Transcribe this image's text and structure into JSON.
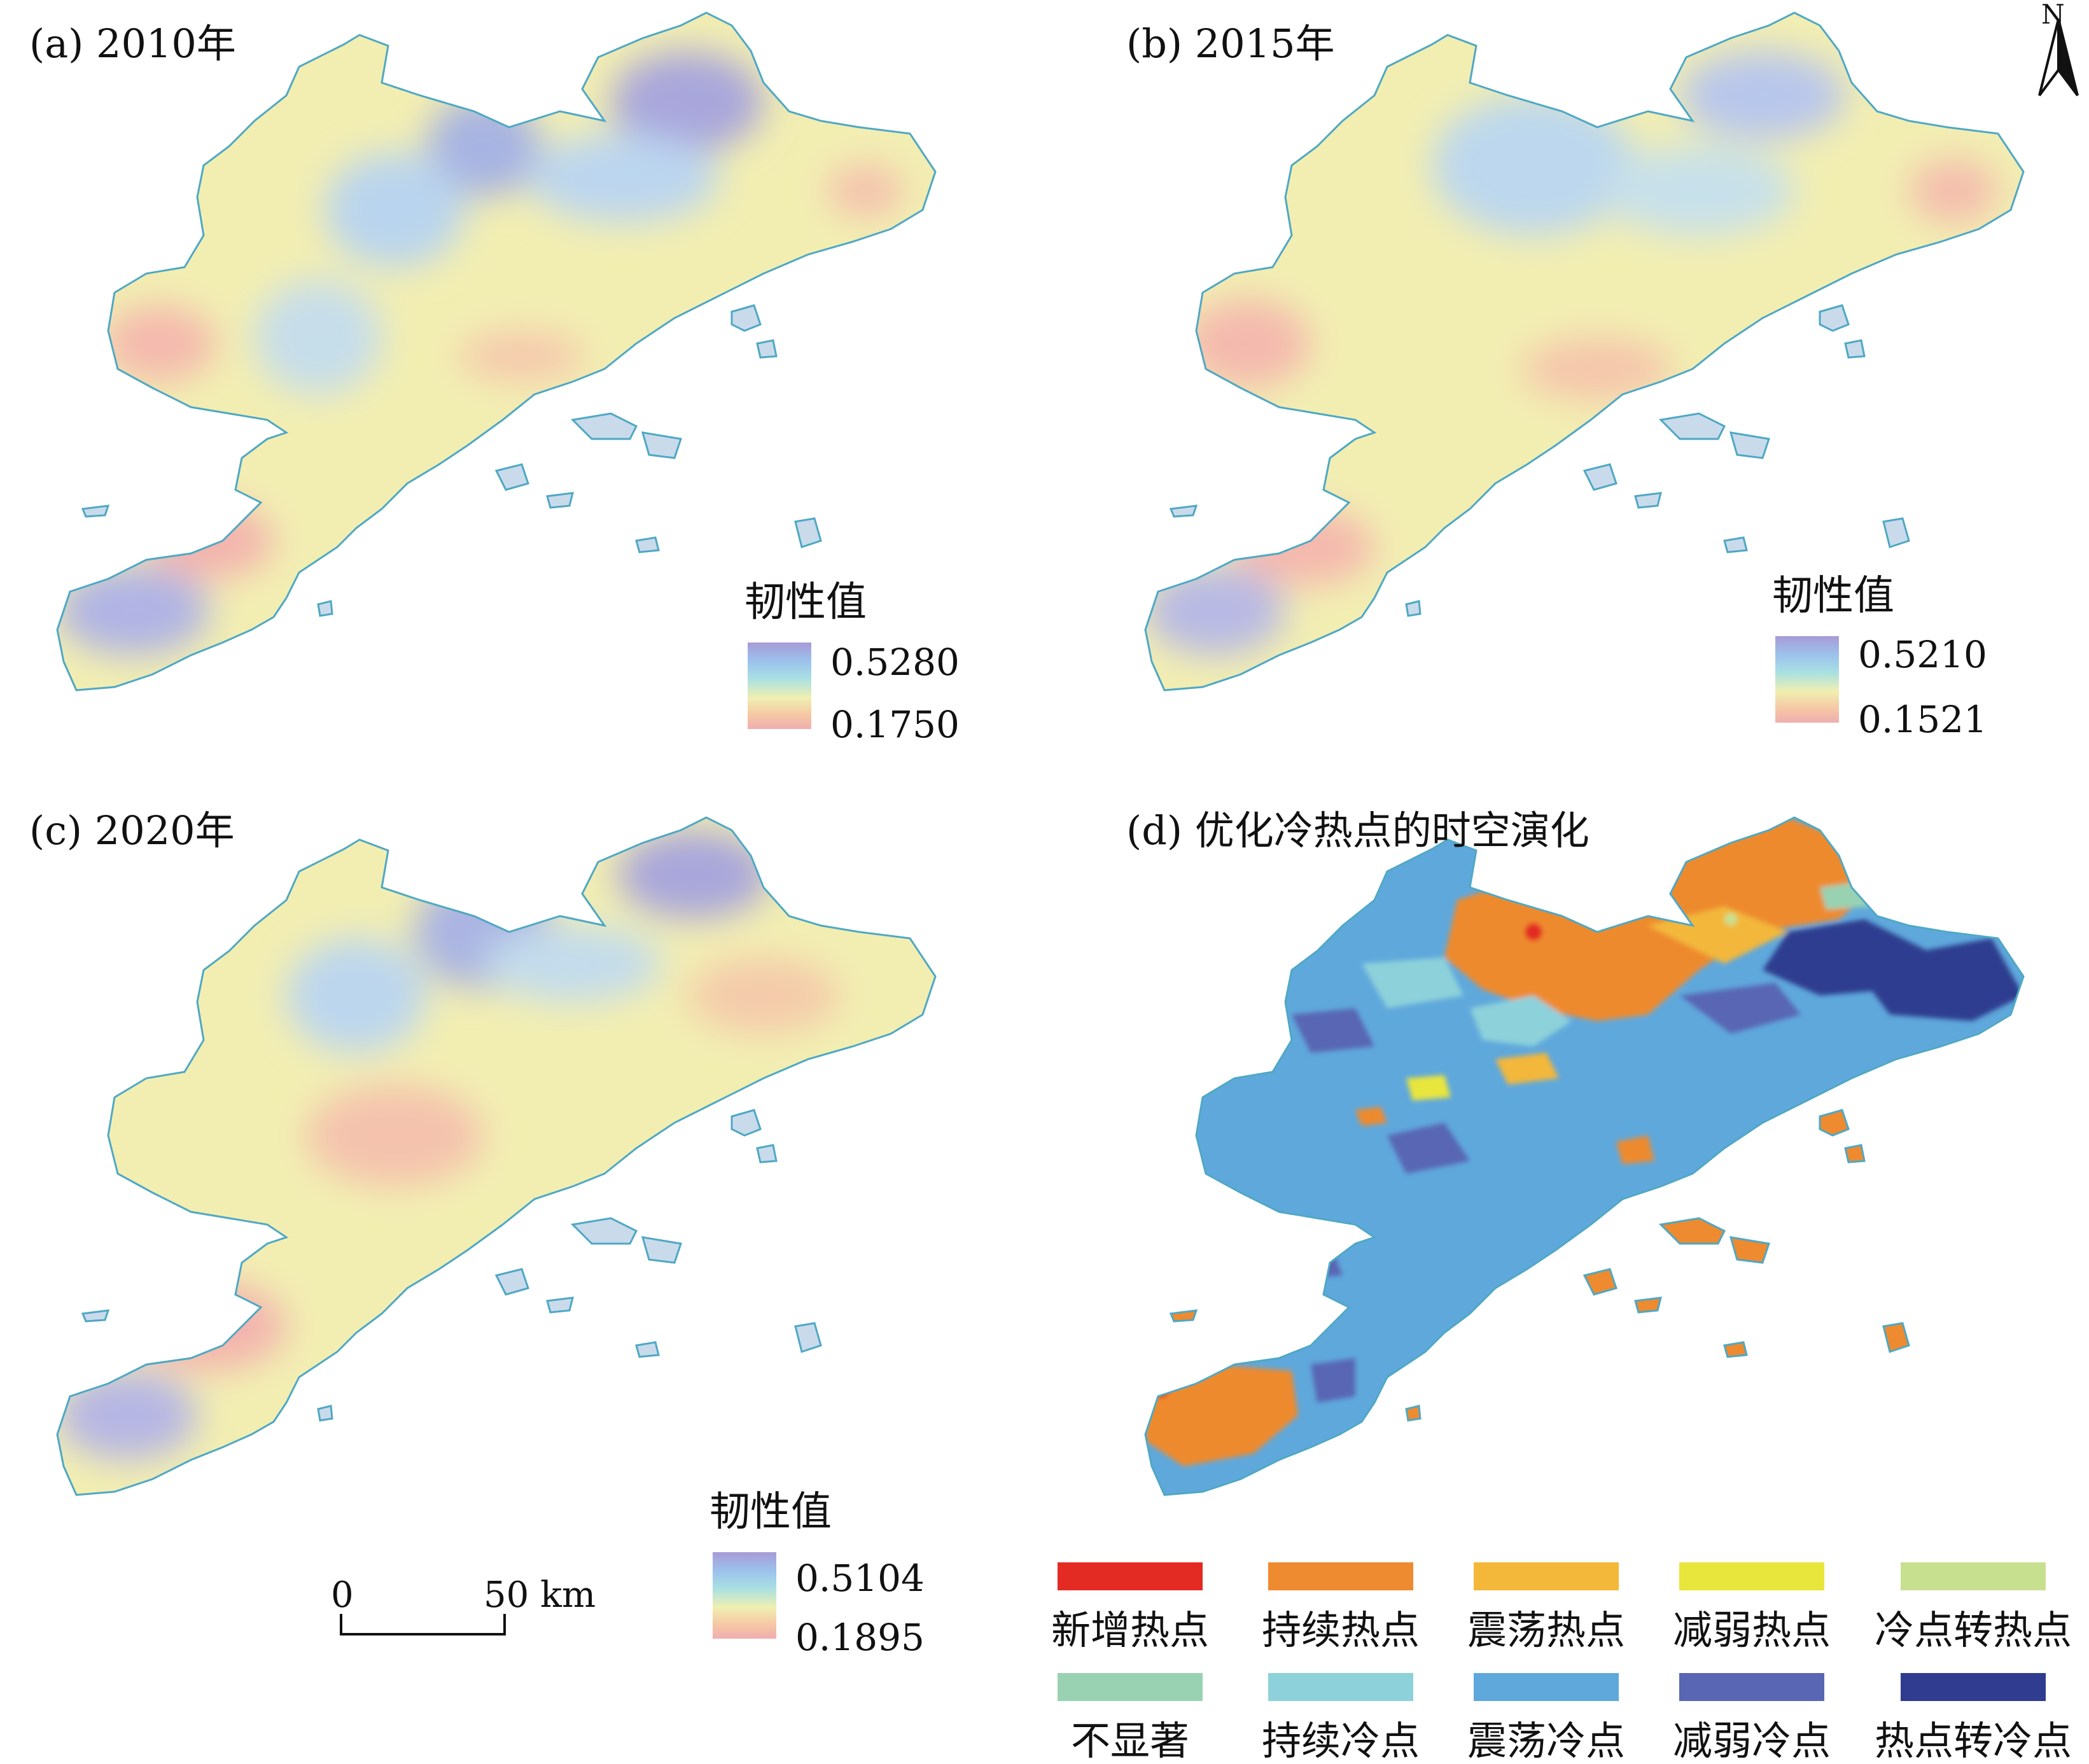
{
  "panels": [
    {
      "id": "a",
      "title": "(a) 2010年",
      "legend_title": "韧性值",
      "legend_max": "0.5280",
      "legend_min": "0.1750"
    },
    {
      "id": "b",
      "title": "(b) 2015年",
      "legend_title": "韧性值",
      "legend_max": "0.5210",
      "legend_min": "0.1521"
    },
    {
      "id": "c",
      "title": "(c) 2020年",
      "legend_title": "韧性值",
      "legend_max": "0.5104",
      "legend_min": "0.1895"
    },
    {
      "id": "d",
      "title": "(d) 优化冷热点的时空演化"
    }
  ],
  "north_arrow": {
    "label": "N"
  },
  "scale_bar": {
    "start_label": "0",
    "end_label": "50 km"
  },
  "colors": {
    "ramp_high": "#a79ad6",
    "ramp_mid": "#f0efb1",
    "ramp_low": "#f0aeb0",
    "outline": "#4fa8c4"
  },
  "categories": [
    {
      "label": "新增热点",
      "color": "#e32b24"
    },
    {
      "label": "持续热点",
      "color": "#ee8a2f"
    },
    {
      "label": "震荡热点",
      "color": "#f3b73a"
    },
    {
      "label": "减弱热点",
      "color": "#e8e53c"
    },
    {
      "label": "冷点转热点",
      "color": "#c7e08f"
    },
    {
      "label": "不显著",
      "color": "#99d2b2"
    },
    {
      "label": "持续冷点",
      "color": "#8dd1da"
    },
    {
      "label": "震荡冷点",
      "color": "#5fa8dc"
    },
    {
      "label": "减弱冷点",
      "color": "#5966b3"
    },
    {
      "label": "热点转冷点",
      "color": "#2f3c8f"
    }
  ]
}
